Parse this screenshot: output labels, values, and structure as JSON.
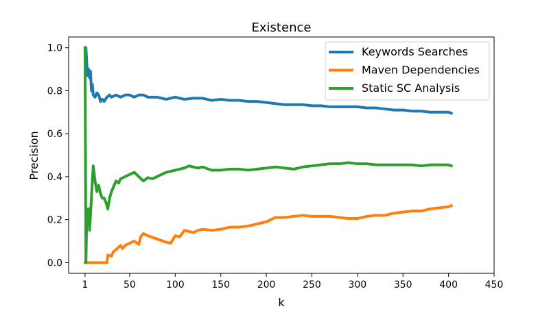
{
  "chart_data": {
    "type": "line",
    "title": "Existence",
    "xlabel": "k",
    "ylabel": "Precision",
    "xlim": [
      -17,
      450
    ],
    "ylim": [
      -0.05,
      1.05
    ],
    "xticks": [
      1,
      50,
      100,
      150,
      200,
      250,
      300,
      350,
      400,
      450
    ],
    "xtick_labels": [
      "1",
      "50",
      "100",
      "150",
      "200",
      "250",
      "300",
      "350",
      "400",
      "450"
    ],
    "yticks": [
      0.0,
      0.2,
      0.4,
      0.6,
      0.8,
      1.0
    ],
    "ytick_labels": [
      "0.0",
      "0.2",
      "0.4",
      "0.6",
      "0.8",
      "1.0"
    ],
    "grid": false,
    "legend_position": "top-right",
    "series": [
      {
        "name": "Keywords Searches",
        "color": "#1f77b4",
        "x": [
          1,
          2,
          3,
          4,
          5,
          6,
          7,
          8,
          9,
          10,
          12,
          14,
          16,
          18,
          20,
          22,
          25,
          28,
          30,
          35,
          40,
          45,
          50,
          55,
          60,
          65,
          70,
          75,
          80,
          90,
          100,
          110,
          120,
          130,
          140,
          150,
          160,
          170,
          180,
          190,
          200,
          210,
          220,
          230,
          240,
          250,
          260,
          270,
          280,
          290,
          300,
          310,
          320,
          330,
          340,
          350,
          360,
          370,
          380,
          390,
          400,
          403
        ],
        "y": [
          1.0,
          1.0,
          0.92,
          0.87,
          0.9,
          0.86,
          0.89,
          0.8,
          0.83,
          0.78,
          0.77,
          0.79,
          0.78,
          0.75,
          0.76,
          0.75,
          0.77,
          0.78,
          0.77,
          0.78,
          0.77,
          0.78,
          0.78,
          0.77,
          0.78,
          0.78,
          0.77,
          0.77,
          0.77,
          0.76,
          0.77,
          0.76,
          0.765,
          0.765,
          0.755,
          0.76,
          0.755,
          0.755,
          0.75,
          0.75,
          0.745,
          0.74,
          0.735,
          0.735,
          0.735,
          0.73,
          0.73,
          0.725,
          0.725,
          0.725,
          0.725,
          0.72,
          0.72,
          0.715,
          0.71,
          0.71,
          0.705,
          0.705,
          0.7,
          0.7,
          0.7,
          0.695
        ]
      },
      {
        "name": "Maven Dependencies",
        "color": "#ff7f0e",
        "x": [
          1,
          2,
          3,
          5,
          10,
          15,
          20,
          25,
          26,
          30,
          32,
          35,
          40,
          42,
          45,
          50,
          55,
          60,
          62,
          65,
          70,
          80,
          90,
          95,
          100,
          105,
          110,
          115,
          120,
          125,
          130,
          140,
          150,
          160,
          170,
          180,
          190,
          200,
          205,
          210,
          220,
          230,
          240,
          250,
          260,
          270,
          280,
          290,
          300,
          310,
          320,
          330,
          340,
          350,
          360,
          370,
          380,
          390,
          400,
          403
        ],
        "y": [
          0.0,
          0.0,
          0.0,
          0.0,
          0.0,
          0.0,
          0.0,
          0.0,
          0.035,
          0.03,
          0.05,
          0.06,
          0.08,
          0.065,
          0.08,
          0.09,
          0.1,
          0.085,
          0.12,
          0.135,
          0.125,
          0.11,
          0.095,
          0.09,
          0.125,
          0.12,
          0.15,
          0.145,
          0.14,
          0.15,
          0.155,
          0.15,
          0.155,
          0.165,
          0.165,
          0.17,
          0.18,
          0.19,
          0.2,
          0.21,
          0.21,
          0.215,
          0.22,
          0.215,
          0.215,
          0.215,
          0.21,
          0.205,
          0.205,
          0.215,
          0.22,
          0.22,
          0.23,
          0.235,
          0.24,
          0.24,
          0.25,
          0.255,
          0.26,
          0.265
        ]
      },
      {
        "name": "Static SC Analysis",
        "color": "#2ca02c",
        "x": [
          1,
          2,
          3,
          4,
          5,
          6,
          8,
          10,
          12,
          14,
          16,
          18,
          20,
          22,
          24,
          26,
          28,
          30,
          32,
          35,
          38,
          40,
          45,
          50,
          55,
          60,
          65,
          70,
          75,
          80,
          85,
          90,
          100,
          110,
          115,
          120,
          125,
          130,
          140,
          150,
          160,
          170,
          180,
          190,
          200,
          210,
          220,
          230,
          240,
          250,
          260,
          270,
          280,
          290,
          300,
          310,
          320,
          330,
          340,
          350,
          360,
          370,
          380,
          390,
          400,
          403
        ],
        "y": [
          1.0,
          0.0,
          0.25,
          0.18,
          0.25,
          0.15,
          0.3,
          0.45,
          0.38,
          0.33,
          0.36,
          0.32,
          0.3,
          0.3,
          0.28,
          0.25,
          0.3,
          0.33,
          0.35,
          0.38,
          0.37,
          0.39,
          0.4,
          0.41,
          0.42,
          0.4,
          0.38,
          0.395,
          0.39,
          0.4,
          0.41,
          0.42,
          0.43,
          0.44,
          0.45,
          0.445,
          0.44,
          0.445,
          0.43,
          0.43,
          0.435,
          0.435,
          0.43,
          0.435,
          0.44,
          0.445,
          0.44,
          0.435,
          0.445,
          0.45,
          0.455,
          0.46,
          0.46,
          0.465,
          0.46,
          0.46,
          0.455,
          0.455,
          0.455,
          0.455,
          0.455,
          0.45,
          0.455,
          0.455,
          0.455,
          0.45
        ]
      }
    ]
  }
}
